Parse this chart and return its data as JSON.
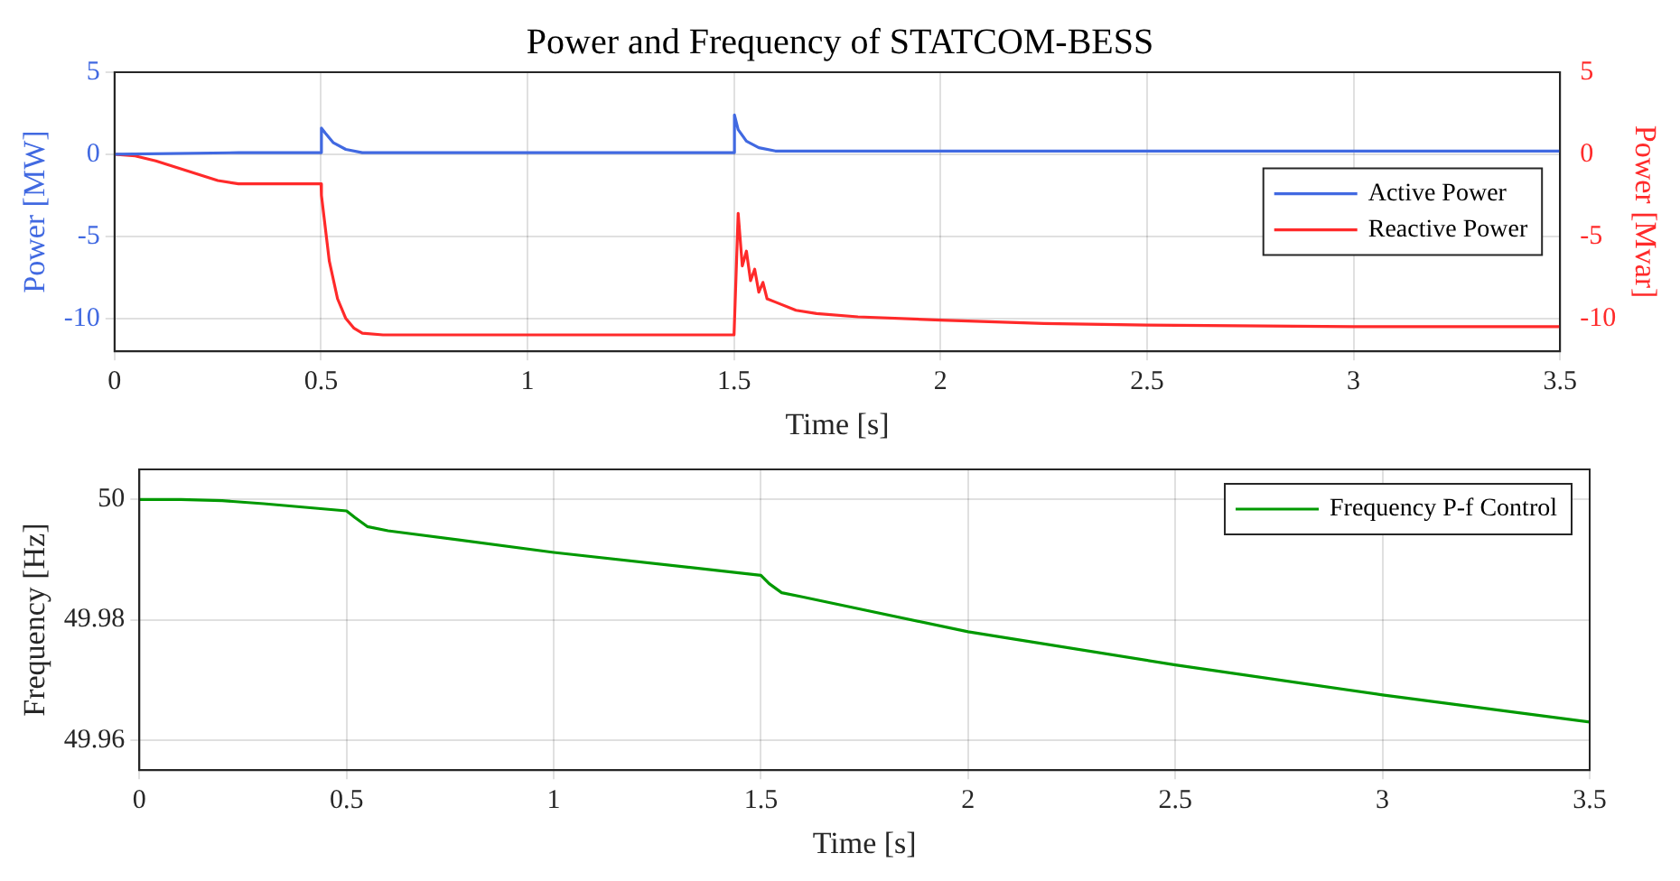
{
  "chart_data": [
    {
      "type": "line",
      "title": "Power and Frequency of STATCOM-BESS",
      "xlabel": "Time [s]",
      "ylabel": "Power [MW]",
      "y2label": "Power [Mvar]",
      "xlim": [
        0,
        3.5
      ],
      "xticks": [
        0,
        0.5,
        1,
        1.5,
        2,
        2.5,
        3,
        3.5
      ],
      "ylim": [
        -12,
        5
      ],
      "yticks": [
        -10,
        -5,
        0,
        5
      ],
      "y2lim": [
        -12,
        5
      ],
      "y2ticks": [
        -10,
        -5,
        0,
        5
      ],
      "grid": true,
      "legend": "right",
      "marker": "none",
      "line_style": "solid",
      "series": [
        {
          "name": "Active Power",
          "color": "#4169e1",
          "axis": "y",
          "x": [
            0,
            0.3,
            0.5,
            0.501,
            0.51,
            0.53,
            0.56,
            0.6,
            1.5,
            1.501,
            1.51,
            1.53,
            1.56,
            1.6,
            2,
            3.5
          ],
          "values": [
            0,
            0.1,
            0.1,
            1.6,
            1.3,
            0.7,
            0.3,
            0.1,
            0.1,
            2.4,
            1.5,
            0.8,
            0.4,
            0.2,
            0.2,
            0.2
          ]
        },
        {
          "name": "Reactive Power",
          "color": "#ff2a2a",
          "axis": "y2",
          "x": [
            0,
            0.05,
            0.1,
            0.15,
            0.2,
            0.25,
            0.3,
            0.5,
            0.501,
            0.52,
            0.54,
            0.56,
            0.58,
            0.6,
            0.65,
            1.5,
            1.51,
            1.52,
            1.53,
            1.54,
            1.55,
            1.56,
            1.57,
            1.58,
            1.6,
            1.65,
            1.7,
            1.8,
            2,
            2.25,
            2.5,
            3,
            3.5
          ],
          "values": [
            0,
            -0.1,
            -0.4,
            -0.8,
            -1.2,
            -1.6,
            -1.8,
            -1.8,
            -2.5,
            -6.5,
            -8.8,
            -10,
            -10.6,
            -10.9,
            -11,
            -11,
            -3.6,
            -6.8,
            -5.9,
            -7.7,
            -7,
            -8.4,
            -7.8,
            -8.8,
            -9,
            -9.5,
            -9.7,
            -9.9,
            -10.1,
            -10.3,
            -10.4,
            -10.5,
            -10.5
          ]
        }
      ]
    },
    {
      "type": "line",
      "xlabel": "Time [s]",
      "ylabel": "Frequency [Hz]",
      "xlim": [
        0,
        3.5
      ],
      "xticks": [
        0,
        0.5,
        1,
        1.5,
        2,
        2.5,
        3,
        3.5
      ],
      "ylim": [
        49.955,
        50.005
      ],
      "yticks": [
        49.96,
        49.98,
        50
      ],
      "grid": true,
      "legend": "top right",
      "marker": "none",
      "line_style": "solid",
      "series": [
        {
          "name": "Frequency P-f Control",
          "color": "#009900",
          "x": [
            0,
            0.1,
            0.2,
            0.3,
            0.4,
            0.5,
            0.52,
            0.55,
            0.6,
            1,
            1.5,
            1.52,
            1.55,
            1.6,
            2,
            2.5,
            3,
            3.5
          ],
          "values": [
            50,
            50,
            49.9998,
            49.9993,
            49.9987,
            49.9981,
            49.997,
            49.9955,
            49.9948,
            49.9912,
            49.9874,
            49.986,
            49.9845,
            49.9838,
            49.978,
            49.9725,
            49.9675,
            49.963
          ]
        }
      ]
    }
  ]
}
